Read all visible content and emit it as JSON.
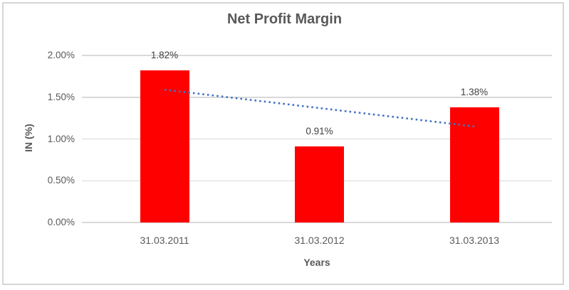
{
  "chart_data": {
    "type": "bar",
    "title": "Net Profit Margin",
    "categories": [
      "31.03.2011",
      "31.03.2012",
      "31.03.2013"
    ],
    "values": [
      1.82,
      0.91,
      1.38
    ],
    "value_labels": [
      "1.82%",
      "0.91%",
      "1.38%"
    ],
    "xlabel": "Years",
    "ylabel": "IN (%)",
    "ylim": [
      0,
      2.0
    ],
    "yticks": [
      2.0,
      1.5,
      1.0,
      0.5,
      0.0
    ],
    "ytick_labels": [
      "2.00%",
      "1.50%",
      "1.00%",
      "0.50%",
      "0.00%"
    ],
    "grid": true,
    "legend": "none",
    "bar_color": "#ff0000",
    "label_color": "#404040",
    "axis_text_color": "#595959",
    "gridline_color": "#d9d9d9",
    "trendline": {
      "type": "linear",
      "style": "dotted",
      "color": "#4472c4",
      "start_value": 1.59,
      "end_value": 1.15
    }
  }
}
